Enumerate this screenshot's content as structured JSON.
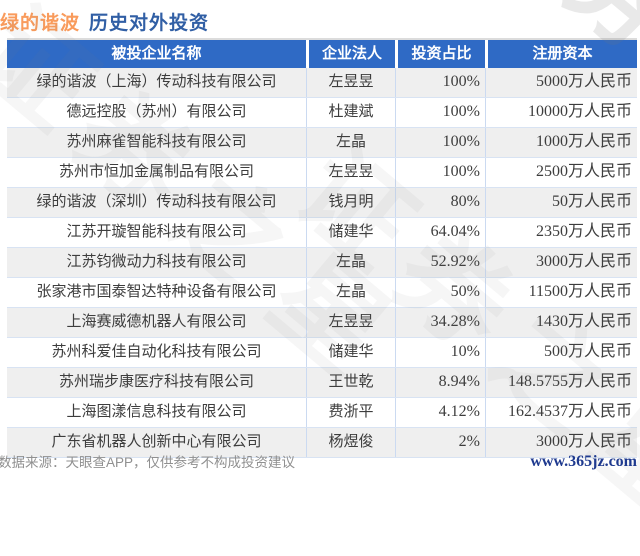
{
  "title": {
    "stock_name": "绿的谐波",
    "suffix": "历史对外投资"
  },
  "chart_data": {
    "type": "table",
    "title": "绿的谐波 历史对外投资",
    "columns": [
      "被投企业名称",
      "企业法人",
      "投资占比",
      "注册资本"
    ],
    "rows": [
      [
        "绿的谐波（上海）传动科技有限公司",
        "左昱昱",
        "100%",
        "5000万人民币"
      ],
      [
        "德远控股（苏州）有限公司",
        "杜建斌",
        "100%",
        "10000万人民币"
      ],
      [
        "苏州麻雀智能科技有限公司",
        "左晶",
        "100%",
        "1000万人民币"
      ],
      [
        "苏州市恒加金属制品有限公司",
        "左昱昱",
        "100%",
        "2500万人民币"
      ],
      [
        "绿的谐波（深圳）传动科技有限公司",
        "钱月明",
        "80%",
        "50万人民币"
      ],
      [
        "江苏开璇智能科技有限公司",
        "储建华",
        "64.04%",
        "2350万人民币"
      ],
      [
        "江苏钧微动力科技有限公司",
        "左晶",
        "52.92%",
        "3000万人民币"
      ],
      [
        "张家港市国泰智达特种设备有限公司",
        "左晶",
        "50%",
        "11500万人民币"
      ],
      [
        "上海赛威德机器人有限公司",
        "左昱昱",
        "34.28%",
        "1430万人民币"
      ],
      [
        "苏州科爱佳自动化科技有限公司",
        "储建华",
        "10%",
        "500万人民币"
      ],
      [
        "苏州瑞步康医疗科技有限公司",
        "王世乾",
        "8.94%",
        "148.5755万人民币"
      ],
      [
        "上海图漾信息科技有限公司",
        "费浙平",
        "4.12%",
        "162.4537万人民币"
      ],
      [
        "广东省机器人创新中心有限公司",
        "杨煜俊",
        "2%",
        "3000万人民币"
      ]
    ]
  },
  "colors": {
    "header_bg": "#2F6AC5",
    "header_text": "#ffffff",
    "title_stock": "#F99B5C",
    "title_suffix": "#315FA5",
    "row_stripe": "#efefef",
    "cell_border": "#cbdaf1",
    "row_border": "#d8e3f3",
    "footer_text": "#909090",
    "site_link": "#1F3A8F"
  },
  "watermark": {
    "text": "证券之星"
  },
  "footer": {
    "source_note": "数据来源：天眼查APP，仅供参考不构成投资建议",
    "site": "www.365jz.com"
  }
}
